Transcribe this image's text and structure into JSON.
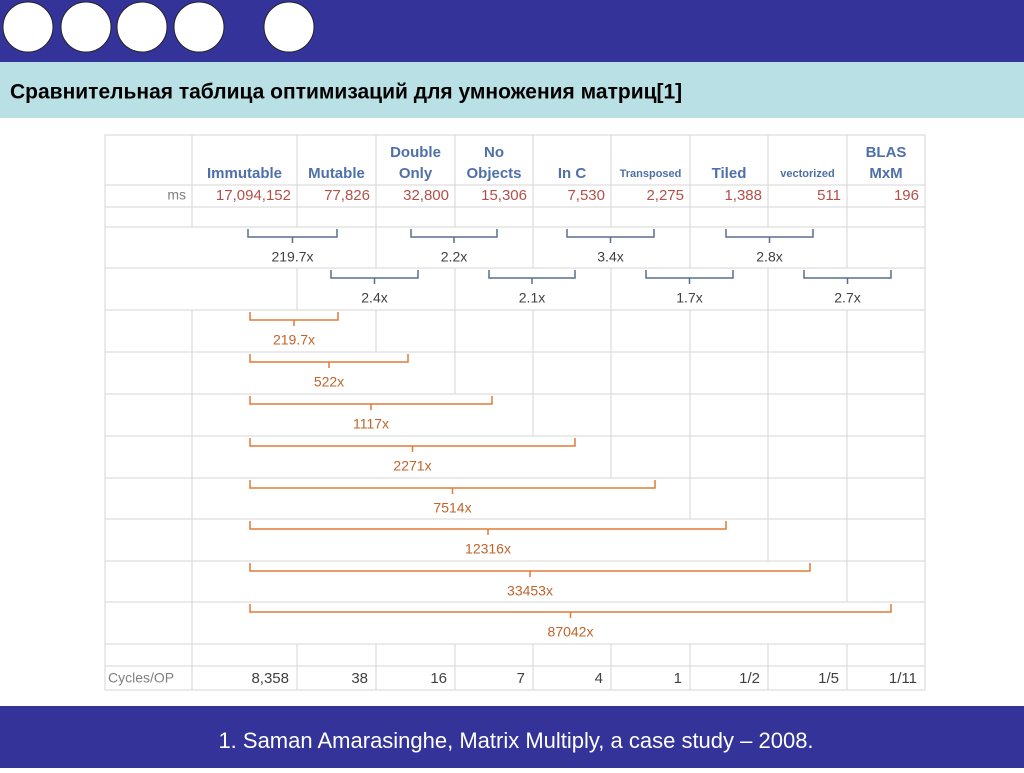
{
  "title": "Сравнительная таблица оптимизаций для умножения матриц[1]",
  "table": {
    "headers": [
      [
        "Immutable"
      ],
      [
        "Mutable"
      ],
      [
        "Double",
        "Only"
      ],
      [
        "No",
        "Objects"
      ],
      [
        "In C"
      ],
      [
        "Transposed"
      ],
      [
        "Tiled"
      ],
      [
        "vectorized"
      ],
      [
        "BLAS",
        "MxM"
      ]
    ],
    "ms_label": "ms",
    "ms": [
      "17,094,152",
      "77,826",
      "32,800",
      "15,306",
      "7,530",
      "2,275",
      "1,388",
      "511",
      "196"
    ],
    "pairwise_row1": [
      "219.7x",
      "2.2x",
      "3.4x",
      "2.8x"
    ],
    "pairwise_row2": [
      "2.4x",
      "2.1x",
      "1.7x",
      "2.7x"
    ],
    "cumulative": [
      "219.7x",
      "522x",
      "1117x",
      "2271x",
      "7514x",
      "12316x",
      "33453x",
      "87042x"
    ],
    "cycles_label": "Cycles/OP",
    "cycles": [
      "8,358",
      "38",
      "16",
      "7",
      "4",
      "1",
      "1/2",
      "1/5",
      "1/11"
    ]
  },
  "footer": "1. Saman Amarasinghe, Matrix Multiply, a case study – 2008."
}
